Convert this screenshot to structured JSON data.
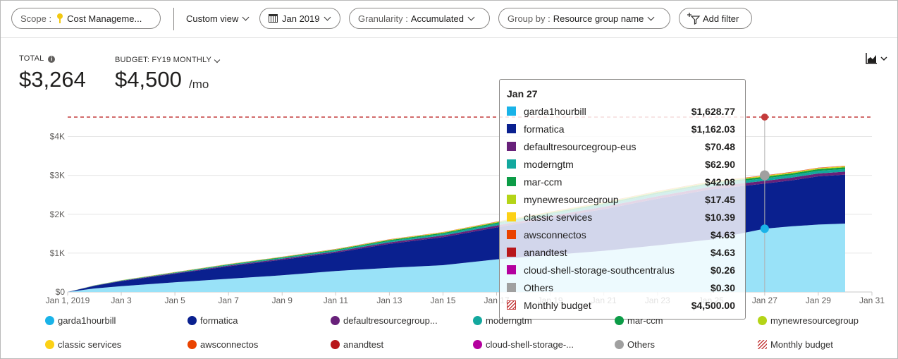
{
  "toolbar": {
    "scope_label": "Scope :",
    "scope_value": "Cost Manageme...",
    "custom_view": "Custom view",
    "date": "Jan 2019",
    "granularity_label": "Granularity :",
    "granularity_value": "Accumulated",
    "groupby_label": "Group by :",
    "groupby_value": "Resource group name",
    "add_filter": "Add filter"
  },
  "summary": {
    "total_label": "TOTAL",
    "total_value": "$3,264",
    "budget_label": "BUDGET: FY19 MONTHLY",
    "budget_value": "$4,500",
    "budget_unit": "/mo"
  },
  "tooltip": {
    "title": "Jan 27",
    "rows": [
      {
        "name": "garda1hourbill",
        "value": "$1,628.77",
        "color": "#1ab3e8"
      },
      {
        "name": "formatica",
        "value": "$1,162.03",
        "color": "#0a208f"
      },
      {
        "name": "defaultresourcegroup-eus",
        "value": "$70.48",
        "color": "#68217a"
      },
      {
        "name": "moderngtm",
        "value": "$62.90",
        "color": "#13a89e"
      },
      {
        "name": "mar-ccm",
        "value": "$42.08",
        "color": "#0c9c47"
      },
      {
        "name": "mynewresourcegroup",
        "value": "$17.45",
        "color": "#b4d417"
      },
      {
        "name": "classic services",
        "value": "$10.39",
        "color": "#fcd116"
      },
      {
        "name": "awsconnectos",
        "value": "$4.63",
        "color": "#ea4300"
      },
      {
        "name": "anandtest",
        "value": "$4.63",
        "color": "#b8171b"
      },
      {
        "name": "cloud-shell-storage-southcentralus",
        "value": "$0.26",
        "color": "#b4009e"
      },
      {
        "name": "Others",
        "value": "$0.30",
        "color": "#a0a0a0"
      },
      {
        "name": "Monthly budget",
        "value": "$4,500.00",
        "color": "#c43b3b"
      }
    ]
  },
  "legend": [
    {
      "name": "garda1hourbill",
      "color": "#1ab3e8"
    },
    {
      "name": "formatica",
      "color": "#0a208f"
    },
    {
      "name": "defaultresourcegroup...",
      "color": "#68217a"
    },
    {
      "name": "moderngtm",
      "color": "#13a89e"
    },
    {
      "name": "mar-ccm",
      "color": "#0c9c47"
    },
    {
      "name": "mynewresourcegroup",
      "color": "#b4d417"
    },
    {
      "name": "classic services",
      "color": "#fcd116"
    },
    {
      "name": "awsconnectos",
      "color": "#ea4300"
    },
    {
      "name": "anandtest",
      "color": "#b8171b"
    },
    {
      "name": "cloud-shell-storage-...",
      "color": "#b4009e"
    },
    {
      "name": "Others",
      "color": "#a0a0a0"
    },
    {
      "name": "Monthly budget",
      "color": "#c43b3b"
    }
  ],
  "chart_data": {
    "type": "area",
    "x_start": "2019-01-01",
    "x_end": "2019-01-31",
    "x_tick_labels": [
      "Jan 1, 2019",
      "Jan 3",
      "Jan 5",
      "Jan 7",
      "Jan 9",
      "Jan 11",
      "Jan 13",
      "Jan 15",
      "Jan 17",
      "Jan 19",
      "Jan 21",
      "Jan 23",
      "Jan 25",
      "Jan 27",
      "Jan 29",
      "Jan 31"
    ],
    "y_tick_labels": [
      "$0",
      "$1K",
      "$2K",
      "$3K",
      "$4K"
    ],
    "ylim": [
      0,
      4500
    ],
    "budget": 4500,
    "highlight_day": 27,
    "days": [
      1,
      2,
      3,
      5,
      7,
      9,
      11,
      13,
      15,
      17,
      19,
      21,
      23,
      25,
      27,
      28,
      29,
      30
    ],
    "series": [
      {
        "name": "garda1hourbill",
        "values": [
          0,
          90,
          150,
          250,
          340,
          430,
          540,
          620,
          690,
          840,
          950,
          1060,
          1200,
          1350,
          1628,
          1690,
          1735,
          1760
        ]
      },
      {
        "name": "formatica",
        "values": [
          0,
          70,
          130,
          220,
          320,
          400,
          470,
          620,
          720,
          820,
          950,
          1070,
          1200,
          1290,
          1162,
          1180,
          1240,
          1260
        ]
      },
      {
        "name": "defaultresourcegroup-eus",
        "values": [
          0,
          4,
          8,
          14,
          20,
          26,
          32,
          38,
          44,
          50,
          55,
          60,
          64,
          67,
          70,
          72,
          74,
          76
        ]
      },
      {
        "name": "moderngtm",
        "values": [
          0,
          4,
          7,
          12,
          18,
          23,
          28,
          34,
          39,
          44,
          49,
          54,
          58,
          61,
          63,
          64,
          66,
          67
        ]
      },
      {
        "name": "mar-ccm",
        "values": [
          0,
          3,
          5,
          8,
          12,
          15,
          19,
          23,
          26,
          30,
          33,
          36,
          39,
          41,
          42,
          43,
          44,
          45
        ]
      },
      {
        "name": "mynewresourcegroup",
        "values": [
          0,
          1,
          2,
          3,
          5,
          6,
          8,
          9,
          11,
          12,
          14,
          15,
          16,
          17,
          17,
          18,
          18,
          19
        ]
      },
      {
        "name": "classic services",
        "values": [
          0,
          1,
          1,
          2,
          3,
          4,
          5,
          6,
          7,
          7,
          8,
          9,
          10,
          10,
          10,
          11,
          11,
          11
        ]
      },
      {
        "name": "awsconnectos",
        "values": [
          0,
          0,
          1,
          1,
          1,
          2,
          2,
          3,
          3,
          3,
          4,
          4,
          4,
          5,
          5,
          5,
          5,
          5
        ]
      },
      {
        "name": "anandtest",
        "values": [
          0,
          0,
          1,
          1,
          1,
          2,
          2,
          3,
          3,
          3,
          4,
          4,
          4,
          5,
          5,
          5,
          5,
          5
        ]
      },
      {
        "name": "cloud-shell-storage-southcentralus",
        "values": [
          0,
          0,
          0,
          0,
          0,
          0,
          0,
          0,
          0,
          0,
          0,
          0,
          0,
          0,
          0,
          0,
          0,
          0
        ]
      },
      {
        "name": "Others",
        "values": [
          0,
          0,
          0,
          0,
          0,
          0,
          0,
          0,
          0,
          0,
          0,
          0,
          0,
          0,
          0,
          0,
          0,
          0
        ]
      }
    ]
  }
}
